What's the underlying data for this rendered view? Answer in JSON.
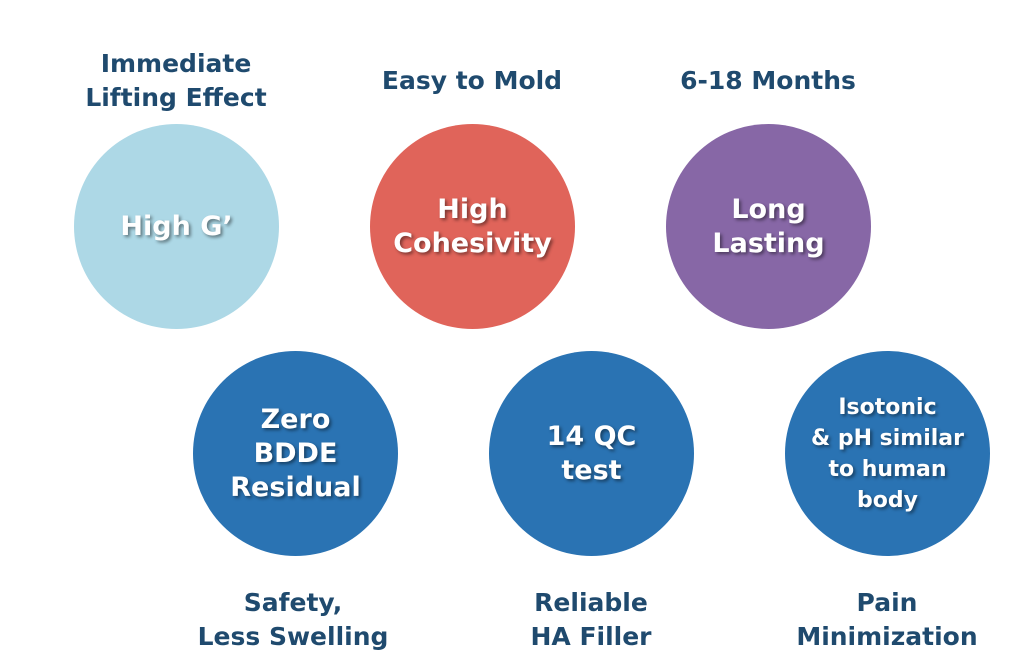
{
  "colors": {
    "caption": "#1f4a6e",
    "light_blue": "#add8e6",
    "red": "#e0645a",
    "purple": "#8767a6",
    "blue": "#2a73b3"
  },
  "top": [
    {
      "caption": "Immediate\nLifting Effect",
      "circle_text": "High G’",
      "color": "#add8e6"
    },
    {
      "caption": "Easy to Mold",
      "circle_text": "High\nCohesivity",
      "color": "#e0645a"
    },
    {
      "caption": "6-18 Months",
      "circle_text": "Long\nLasting",
      "color": "#8767a6"
    }
  ],
  "bottom": [
    {
      "caption": "Safety,\nLess Swelling",
      "circle_text": "Zero\nBDDE\nResidual",
      "color": "#2a73b3"
    },
    {
      "caption": "Reliable\nHA Filler",
      "circle_text": "14 QC\ntest",
      "color": "#2a73b3"
    },
    {
      "caption": "Pain\nMinimization",
      "circle_text": "Isotonic\n& pH similar\nto human\nbody",
      "color": "#2a73b3"
    }
  ]
}
